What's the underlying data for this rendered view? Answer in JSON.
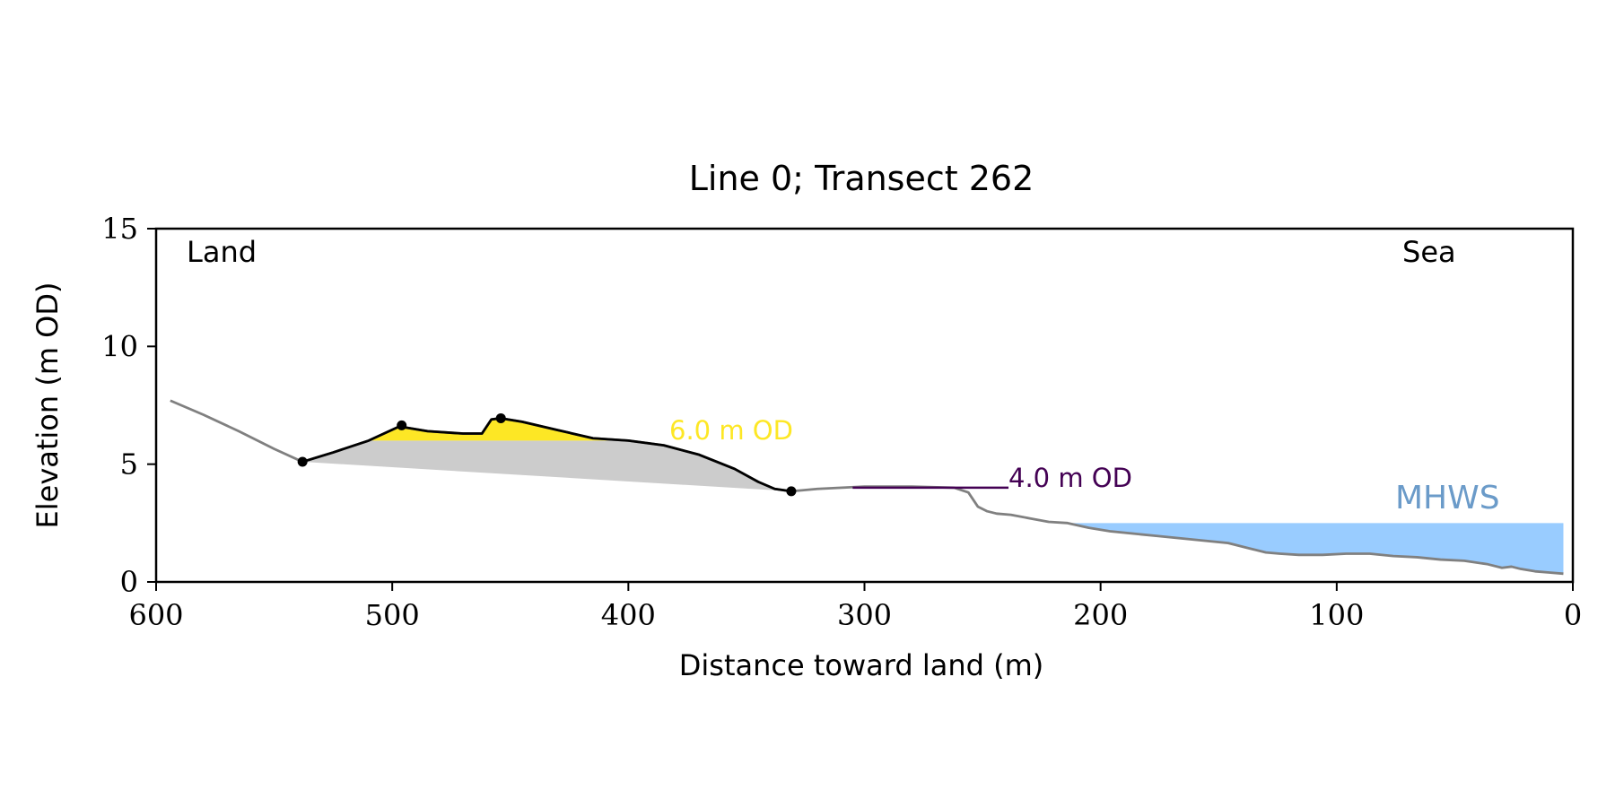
{
  "chart_data": {
    "type": "line",
    "title": "Line 0; Transect 262",
    "xlabel": "Distance toward land (m)",
    "ylabel": "Elevation (m OD)",
    "xlim": [
      600,
      0
    ],
    "ylim": [
      0,
      15
    ],
    "x_ticks": [
      600,
      500,
      400,
      300,
      200,
      100,
      0
    ],
    "y_ticks": [
      0,
      5,
      10,
      15
    ],
    "grid": false,
    "annotations": {
      "land_label": "Land",
      "sea_label": "Sea"
    },
    "colors": {
      "profile_line": "#808080",
      "dune_line": "#000000",
      "dune_fill_upper": "#fde725",
      "dune_fill_lower": "#cccccc",
      "mhws_fill": "#99ccff",
      "mhws_text": "#6b9bc9",
      "od6_color": "#fde725",
      "od4_color": "#440154"
    },
    "profile": {
      "x": [
        594,
        580,
        565,
        550,
        538,
        525,
        510,
        497,
        485,
        470,
        462,
        458,
        454,
        445,
        430,
        415,
        400,
        385,
        370,
        355,
        345,
        338,
        331,
        320,
        300,
        280,
        262,
        256,
        252,
        248,
        244,
        238,
        230,
        222,
        214,
        205,
        196,
        186,
        176,
        166,
        156,
        146,
        136,
        130,
        124,
        116,
        106,
        96,
        86,
        76,
        66,
        56,
        46,
        36,
        30,
        26,
        22,
        16,
        10,
        4
      ],
      "y": [
        7.7,
        7.1,
        6.4,
        5.65,
        5.1,
        5.5,
        6.0,
        6.6,
        6.4,
        6.3,
        6.3,
        6.9,
        6.95,
        6.8,
        6.45,
        6.1,
        6.0,
        5.8,
        5.4,
        4.8,
        4.25,
        3.95,
        3.85,
        3.95,
        4.05,
        4.05,
        4.0,
        3.8,
        3.2,
        3.0,
        2.9,
        2.85,
        2.7,
        2.55,
        2.5,
        2.3,
        2.15,
        2.05,
        1.95,
        1.85,
        1.75,
        1.65,
        1.4,
        1.25,
        1.2,
        1.15,
        1.15,
        1.2,
        1.2,
        1.1,
        1.05,
        0.95,
        0.9,
        0.75,
        0.6,
        0.65,
        0.55,
        0.45,
        0.4,
        0.35
      ]
    },
    "dune_points": [
      {
        "x": 538,
        "y": 5.1
      },
      {
        "x": 496,
        "y": 6.65
      },
      {
        "x": 454,
        "y": 6.95
      },
      {
        "x": 331,
        "y": 3.85
      }
    ],
    "levels": [
      {
        "label": "6.0 m OD",
        "y": 6.0,
        "x_start": 385,
        "x_end": 385
      },
      {
        "label": "4.0 m OD",
        "y": 4.0,
        "x_start": 305,
        "x_end": 239
      }
    ],
    "mhws": {
      "label": "MHWS",
      "y": 2.5,
      "x_start": 212,
      "x_end": 4
    }
  }
}
